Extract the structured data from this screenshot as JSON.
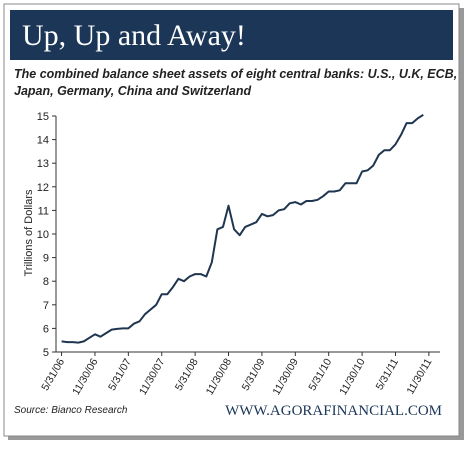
{
  "chart_data": {
    "type": "line",
    "title": "Up, Up and Away!",
    "subtitle": [
      "The combined balance sheet assets of eight central banks: U.S., U.K, ECB,",
      "Japan, Germany, China and Switzerland"
    ],
    "y_label": "Trillions of Dollars",
    "source": "Source: Bianco Research",
    "website": "WWW.AGORAFINANCIAL.COM",
    "color": "#1f3550",
    "x": [
      "2006-05",
      "2006-06",
      "2006-07",
      "2006-08",
      "2006-09",
      "2006-10",
      "2006-11",
      "2006-12",
      "2007-01",
      "2007-02",
      "2007-03",
      "2007-04",
      "2007-05",
      "2007-06",
      "2007-07",
      "2007-08",
      "2007-09",
      "2007-10",
      "2007-11",
      "2007-12",
      "2008-01",
      "2008-02",
      "2008-03",
      "2008-04",
      "2008-05",
      "2008-06",
      "2008-07",
      "2008-08",
      "2008-09",
      "2008-10",
      "2008-11",
      "2008-12",
      "2009-01",
      "2009-02",
      "2009-03",
      "2009-04",
      "2009-05",
      "2009-06",
      "2009-07",
      "2009-08",
      "2009-09",
      "2009-10",
      "2009-11",
      "2009-12",
      "2010-01",
      "2010-02",
      "2010-03",
      "2010-04",
      "2010-05",
      "2010-06",
      "2010-07",
      "2010-08",
      "2010-09",
      "2010-10",
      "2010-11",
      "2010-12",
      "2011-01",
      "2011-02",
      "2011-03",
      "2011-04",
      "2011-05",
      "2011-06",
      "2011-07",
      "2011-08",
      "2011-09",
      "2011-10"
    ],
    "values": [
      5.45,
      5.42,
      5.42,
      5.4,
      5.45,
      5.6,
      5.75,
      5.65,
      5.8,
      5.95,
      5.98,
      6.0,
      6.0,
      6.2,
      6.3,
      6.6,
      6.8,
      7.0,
      7.45,
      7.45,
      7.75,
      8.1,
      8.0,
      8.2,
      8.3,
      8.3,
      8.2,
      8.8,
      10.2,
      10.3,
      11.2,
      10.2,
      9.95,
      10.3,
      10.4,
      10.5,
      10.85,
      10.75,
      10.8,
      11.0,
      11.05,
      11.3,
      11.35,
      11.25,
      11.4,
      11.4,
      11.45,
      11.6,
      11.8,
      11.8,
      11.85,
      12.15,
      12.15,
      12.15,
      12.65,
      12.7,
      12.9,
      13.35,
      13.55,
      13.55,
      13.8,
      14.2,
      14.7,
      14.7,
      14.9,
      15.05
    ],
    "xlim": [
      "2006-04",
      "2012-01"
    ],
    "xticks": [
      {
        "value": "2006-05",
        "label": "5/31/06"
      },
      {
        "value": "2006-11",
        "label": "11/30/06"
      },
      {
        "value": "2007-05",
        "label": "5/31/07"
      },
      {
        "value": "2007-11",
        "label": "11/30/07"
      },
      {
        "value": "2008-05",
        "label": "5/31/08"
      },
      {
        "value": "2008-11",
        "label": "11/30/08"
      },
      {
        "value": "2009-05",
        "label": "5/31/09"
      },
      {
        "value": "2009-11",
        "label": "11/30/09"
      },
      {
        "value": "2010-05",
        "label": "5/31/10"
      },
      {
        "value": "2010-11",
        "label": "11/30/10"
      },
      {
        "value": "2011-05",
        "label": "5/31/11"
      },
      {
        "value": "2011-11",
        "label": "11/30/11"
      }
    ],
    "ylim": [
      5,
      15
    ],
    "yticks": [
      5,
      6,
      7,
      8,
      9,
      10,
      11,
      12,
      13,
      14,
      15
    ]
  }
}
